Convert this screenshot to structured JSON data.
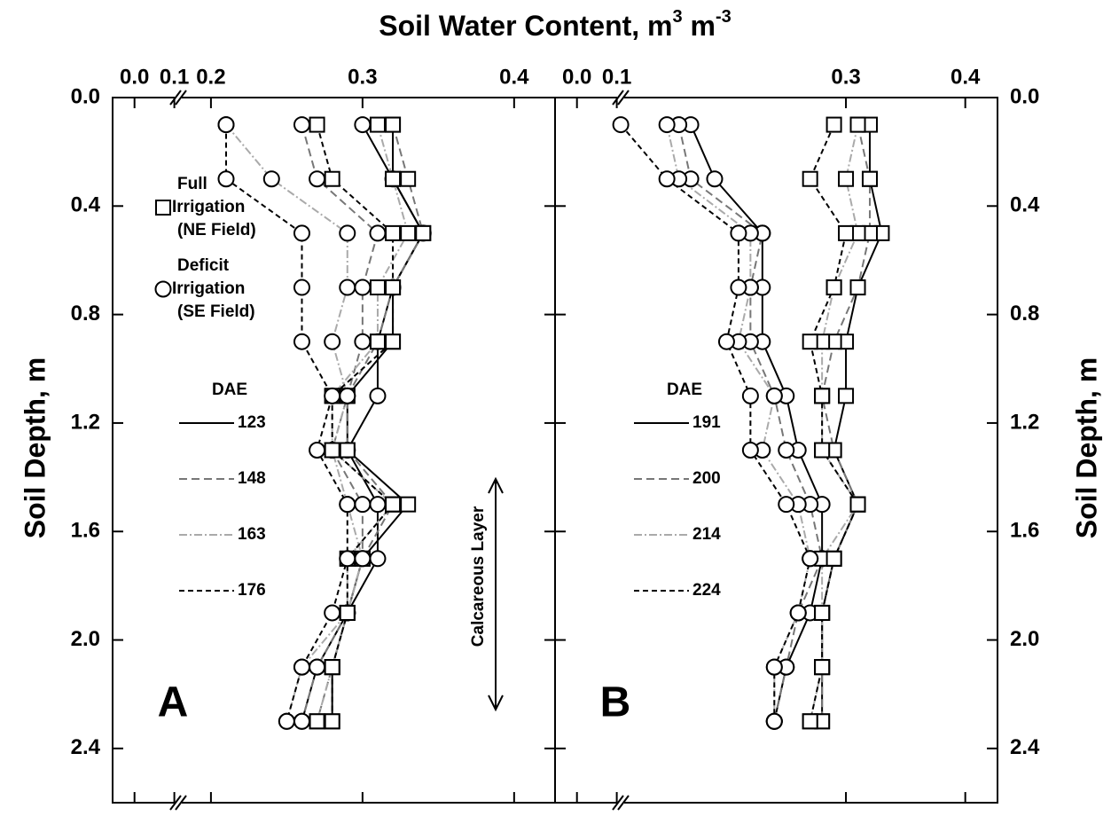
{
  "chart_data": {
    "type": "line",
    "title": [
      {
        "text": "Soil Water Content, m"
      },
      {
        "text": "3",
        "sup": true
      },
      {
        "text": " m"
      },
      {
        "text": "-3",
        "sup": true
      }
    ],
    "ylabel": "Soil Depth, m",
    "ylim": [
      0,
      2.6
    ],
    "yticks": [
      {
        "value": 0,
        "label": "0.0"
      },
      {
        "value": 0.4,
        "label": "0.4"
      },
      {
        "value": 0.8,
        "label": "0.8"
      },
      {
        "value": 1.2,
        "label": "1.2"
      },
      {
        "value": 1.6,
        "label": "1.6"
      },
      {
        "value": 2.0,
        "label": "2.0"
      },
      {
        "value": 2.4,
        "label": "2.4"
      }
    ],
    "y": [
      0.1,
      0.3,
      0.5,
      0.7,
      0.9,
      1.1,
      1.3,
      1.5,
      1.7,
      1.9,
      2.1,
      2.3
    ],
    "markers": [
      "square",
      "circle"
    ],
    "legend_title": "DAE",
    "annotation": "Calcareous Layer",
    "panels": [
      {
        "label": "A",
        "xlim": [
          -0.055,
          0.427
        ],
        "xbreak": [
          0.112,
          0.179
        ],
        "xticks": [
          {
            "value": 0,
            "label": "0.0"
          },
          {
            "value": 0.1,
            "label": "0.1"
          },
          {
            "value": 0.2,
            "label": "0.2"
          },
          {
            "value": 0.3,
            "label": "0.3"
          },
          {
            "value": 0.4,
            "label": "0.4"
          }
        ],
        "treatment_legend": [
          [
            "Full",
            "Irrigation",
            "(NE Field)"
          ],
          [
            "Deficit",
            "Irrigation",
            "(SE Field)"
          ]
        ],
        "series": [
          {
            "name": "123",
            "color": "#000000",
            "dash": "none",
            "values": [
              [
                0.32,
                0.32,
                0.34,
                0.32,
                0.32,
                0.29,
                0.29,
                0.33,
                0.3,
                0.29,
                0.28,
                0.28
              ],
              [
                0.3,
                0.32,
                0.34,
                0.32,
                0.31,
                0.31,
                0.29,
                0.31,
                0.31,
                0.29,
                0.27,
                0.26
              ]
            ]
          },
          {
            "name": "148",
            "color": "#777777",
            "dash": "9,5",
            "values": [
              [
                0.32,
                0.33,
                0.34,
                0.32,
                0.31,
                0.29,
                0.29,
                0.32,
                0.3,
                0.29,
                0.28,
                0.27
              ],
              [
                0.26,
                0.27,
                0.31,
                0.3,
                0.3,
                0.29,
                0.28,
                0.3,
                0.3,
                0.29,
                0.27,
                0.26
              ]
            ]
          },
          {
            "name": "163",
            "color": "#aaaaaa",
            "dash": "9,3,2,3",
            "values": [
              [
                0.31,
                0.32,
                0.33,
                0.31,
                0.31,
                0.28,
                0.28,
                0.32,
                0.29,
                0.29,
                0.28,
                0.27
              ],
              [
                0.21,
                0.24,
                0.29,
                0.29,
                0.28,
                0.29,
                0.28,
                0.29,
                0.3,
                0.29,
                0.26,
                0.25
              ]
            ]
          },
          {
            "name": "176",
            "color": "#000000",
            "dash": "6,4",
            "values": [
              [
                0.27,
                0.28,
                0.32,
                0.32,
                0.32,
                0.28,
                0.28,
                0.32,
                0.29,
                0.29,
                0.28,
                0.28
              ],
              [
                0.21,
                0.21,
                0.26,
                0.26,
                0.26,
                0.28,
                0.27,
                0.29,
                0.29,
                0.28,
                0.26,
                0.25
              ]
            ]
          }
        ]
      },
      {
        "label": "B",
        "xlim": [
          -0.055,
          0.427
        ],
        "xbreak": [
          0.112,
          0.112
        ],
        "xticks": [
          {
            "value": 0,
            "label": "0.0"
          },
          {
            "value": 0.1,
            "label": "0.1"
          },
          {
            "value": 0.3,
            "label": "0.3"
          },
          {
            "value": 0.4,
            "label": "0.4"
          }
        ],
        "series": [
          {
            "name": "191",
            "color": "#000000",
            "dash": "none",
            "values": [
              [
                0.32,
                0.32,
                0.33,
                0.31,
                0.3,
                0.3,
                0.29,
                0.31,
                0.29,
                0.28,
                0.28,
                0.28
              ],
              [
                0.17,
                0.19,
                0.23,
                0.23,
                0.23,
                0.25,
                0.26,
                0.28,
                0.28,
                0.27,
                0.25,
                0.24
              ]
            ]
          },
          {
            "name": "200",
            "color": "#777777",
            "dash": "9,5",
            "values": [
              [
                0.31,
                0.32,
                0.32,
                0.31,
                0.29,
                0.28,
                0.29,
                0.31,
                0.29,
                0.28,
                0.28,
                0.28
              ],
              [
                0.16,
                0.17,
                0.23,
                0.22,
                0.22,
                0.24,
                0.25,
                0.27,
                0.28,
                0.26,
                0.25,
                0.24
              ]
            ]
          },
          {
            "name": "214",
            "color": "#aaaaaa",
            "dash": "9,3,2,3",
            "values": [
              [
                0.31,
                0.3,
                0.31,
                0.29,
                0.28,
                0.28,
                0.28,
                0.31,
                0.28,
                0.28,
                0.28,
                0.27
              ],
              [
                0.15,
                0.16,
                0.22,
                0.22,
                0.21,
                0.24,
                0.23,
                0.26,
                0.27,
                0.26,
                0.24,
                0.24
              ]
            ]
          },
          {
            "name": "224",
            "color": "#000000",
            "dash": "6,4",
            "values": [
              [
                0.29,
                0.27,
                0.3,
                0.29,
                0.27,
                0.28,
                0.28,
                0.31,
                0.29,
                0.28,
                0.28,
                0.27
              ],
              [
                0.11,
                0.15,
                0.21,
                0.21,
                0.2,
                0.22,
                0.22,
                0.25,
                0.27,
                0.26,
                0.24,
                0.24
              ]
            ]
          }
        ]
      }
    ]
  }
}
